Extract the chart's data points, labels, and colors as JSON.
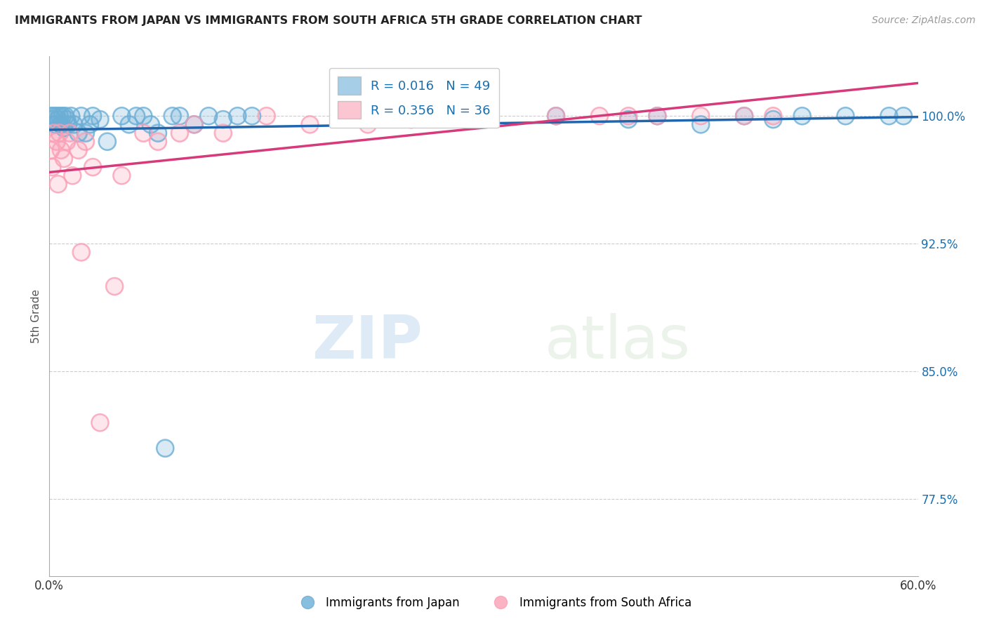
{
  "title": "IMMIGRANTS FROM JAPAN VS IMMIGRANTS FROM SOUTH AFRICA 5TH GRADE CORRELATION CHART",
  "source": "Source: ZipAtlas.com",
  "ylabel": "5th Grade",
  "xlabel_japan": "Immigrants from Japan",
  "xlabel_sa": "Immigrants from South Africa",
  "xlim": [
    0.0,
    60.0
  ],
  "ylim": [
    73.0,
    103.5
  ],
  "yticks": [
    77.5,
    85.0,
    92.5,
    100.0
  ],
  "ytick_labels": [
    "77.5%",
    "85.0%",
    "92.5%",
    "100.0%"
  ],
  "R_japan": 0.016,
  "N_japan": 49,
  "R_sa": 0.356,
  "N_sa": 36,
  "color_japan": "#6baed6",
  "color_sa": "#fa9fb5",
  "line_color_japan": "#2166ac",
  "line_color_sa": "#d63a7a",
  "background_color": "#ffffff",
  "japan_x": [
    0.1,
    0.2,
    0.3,
    0.4,
    0.5,
    0.6,
    0.7,
    0.8,
    0.9,
    1.0,
    1.1,
    1.2,
    1.3,
    1.5,
    1.7,
    2.0,
    2.2,
    2.5,
    2.8,
    3.0,
    3.5,
    4.0,
    5.0,
    5.5,
    6.0,
    7.0,
    7.5,
    8.0,
    9.0,
    10.0,
    11.0,
    12.0,
    14.0,
    20.0,
    25.0,
    30.0,
    35.0,
    40.0,
    42.0,
    45.0,
    48.0,
    50.0,
    52.0,
    55.0,
    58.0,
    59.0,
    6.5,
    8.5,
    13.0
  ],
  "japan_y": [
    100.0,
    99.8,
    100.0,
    99.5,
    100.0,
    99.8,
    100.0,
    99.5,
    100.0,
    99.3,
    100.0,
    99.8,
    99.5,
    100.0,
    99.5,
    99.0,
    100.0,
    99.0,
    99.5,
    100.0,
    99.8,
    98.5,
    100.0,
    99.5,
    100.0,
    99.5,
    99.0,
    80.5,
    100.0,
    99.5,
    100.0,
    99.8,
    100.0,
    100.0,
    99.8,
    100.0,
    100.0,
    99.8,
    100.0,
    99.5,
    100.0,
    99.8,
    100.0,
    100.0,
    100.0,
    100.0,
    100.0,
    100.0,
    100.0
  ],
  "sa_x": [
    0.1,
    0.2,
    0.3,
    0.5,
    0.6,
    0.7,
    0.8,
    1.0,
    1.2,
    1.4,
    1.6,
    2.0,
    2.2,
    2.5,
    3.0,
    3.5,
    4.5,
    5.0,
    6.5,
    7.5,
    9.0,
    10.0,
    12.0,
    15.0,
    18.0,
    20.0,
    22.0,
    25.0,
    30.0,
    35.0,
    38.0,
    40.0,
    42.0,
    45.0,
    48.0,
    50.0
  ],
  "sa_y": [
    98.0,
    97.0,
    99.0,
    98.5,
    96.0,
    99.0,
    98.0,
    97.5,
    98.5,
    99.0,
    96.5,
    98.0,
    92.0,
    98.5,
    97.0,
    82.0,
    90.0,
    96.5,
    99.0,
    98.5,
    99.0,
    99.5,
    99.0,
    100.0,
    99.5,
    100.0,
    99.5,
    100.0,
    100.0,
    100.0,
    100.0,
    100.0,
    100.0,
    100.0,
    100.0,
    100.0
  ]
}
